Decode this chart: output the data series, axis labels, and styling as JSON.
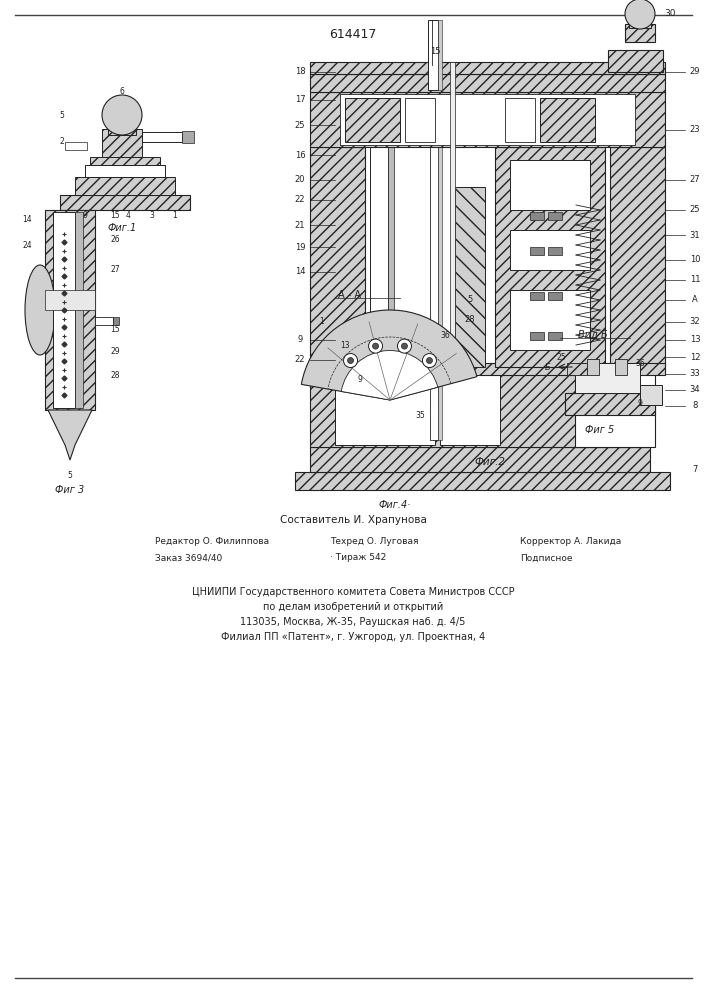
{
  "patent_number": "614417",
  "composer": "Составитель И. Храпунова",
  "editor": "Редактор О. Филиппова",
  "techred": "Техред О. Луговая",
  "corrector": "Корректор А. Лакида",
  "order": "Заказ 3694/40",
  "tirazh": "· Тираж 542",
  "podpisnoe": "Подписное",
  "org_line1": "ЦНИИПИ Государственного комитета Совета Министров СССР",
  "org_line2": "по делам изобретений и открытий",
  "org_line3": "113035, Москва, Ж-35, Раушская наб. д. 4/5",
  "org_line4": "Филиал ПП «Патент», г. Ужгород, ул. Проектная, 4",
  "bg_color": "#ffffff",
  "lc": "#222222",
  "hatch_fc": "#d0d0d0",
  "fig2_label": "Фиг.2",
  "fig1_label": "Фиг.1",
  "fig3_label": "Фиг 3",
  "fig4_label": "Фиг.4·",
  "fig5_label": "Фиг 5"
}
